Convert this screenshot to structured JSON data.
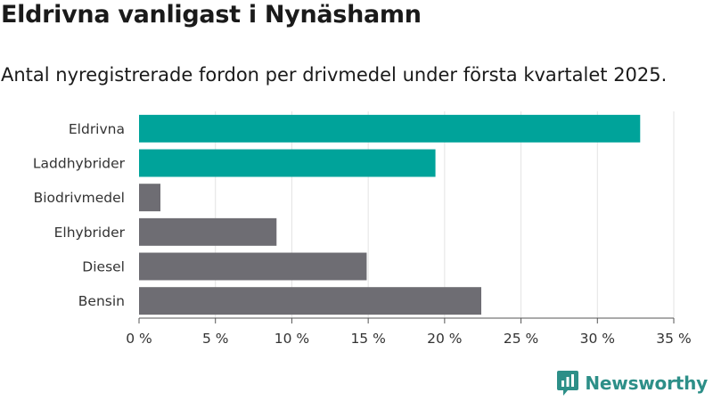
{
  "title": "Eldrivna vanligast i Nynäshamn",
  "subtitle": "Antal nyregistrerade fordon per drivmedel under första kvartalet 2025.",
  "brand": {
    "name": "Newsworthy",
    "icon": "newsworthy-logo-icon",
    "color": "#2d8f88"
  },
  "colors": {
    "highlight": "#00a39a",
    "default": "#6e6d73"
  },
  "chart_data": {
    "type": "bar",
    "orientation": "horizontal",
    "title": "Eldrivna vanligast i Nynäshamn",
    "subtitle": "Antal nyregistrerade fordon per drivmedel under första kvartalet 2025.",
    "categories": [
      "Eldrivna",
      "Laddhybrider",
      "Biodrivmedel",
      "Elhybrider",
      "Diesel",
      "Bensin"
    ],
    "values": [
      32.8,
      19.4,
      1.4,
      9.0,
      14.9,
      22.4
    ],
    "highlighted": [
      true,
      true,
      false,
      false,
      false,
      false
    ],
    "unit": "%",
    "xlim": [
      0,
      35
    ],
    "xticks": [
      0,
      5,
      10,
      15,
      20,
      25,
      30,
      35
    ],
    "xtick_labels": [
      "0 %",
      "5 %",
      "10 %",
      "15 %",
      "20 %",
      "25 %",
      "30 %",
      "35 %"
    ],
    "xlabel": "",
    "ylabel": "",
    "grid": true,
    "legend": "none"
  }
}
